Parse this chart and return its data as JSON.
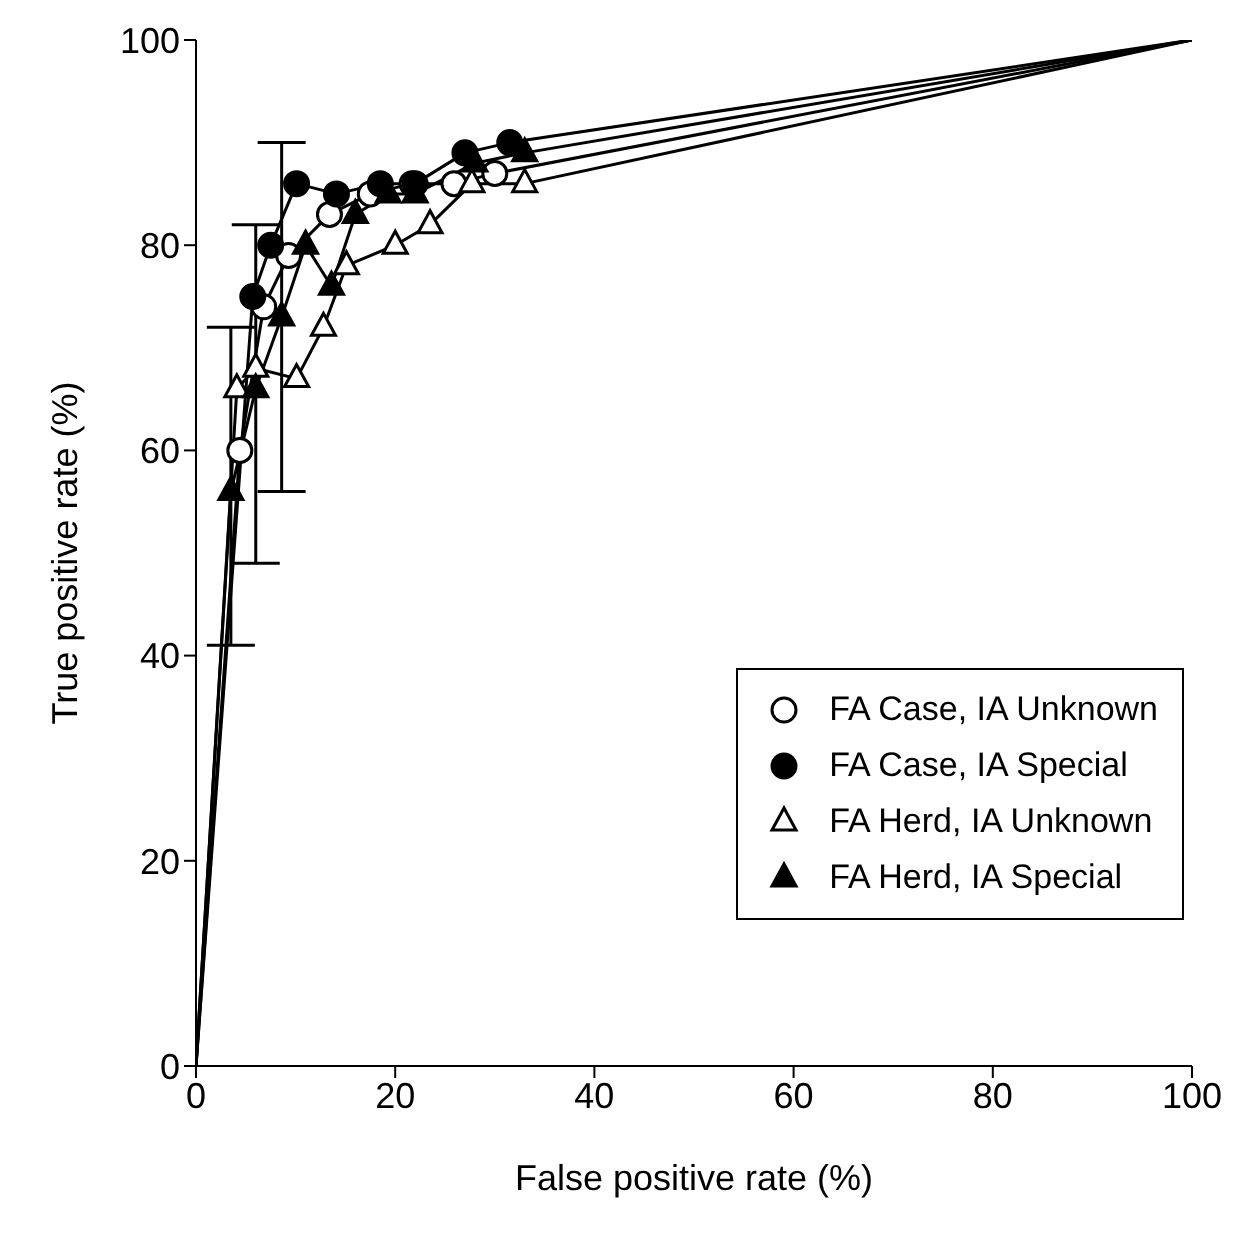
{
  "chart_data": {
    "type": "line",
    "xlabel": "False positive rate (%)",
    "ylabel": "True positive rate (%)",
    "xlim": [
      0,
      100
    ],
    "ylim": [
      0,
      100
    ],
    "xticks": [
      0,
      20,
      40,
      60,
      80,
      100
    ],
    "yticks": [
      0,
      20,
      40,
      60,
      80,
      100
    ],
    "grid": false,
    "legend": "bottom right",
    "line_style": "solid",
    "series": [
      {
        "name": "FA Case, IA Unknown",
        "color": "#ffffff",
        "marker": "circle",
        "x": [
          0,
          4.4,
          6.8,
          9.3,
          13.4,
          17.5,
          21.7,
          25.9,
          30,
          100
        ],
        "values": [
          0,
          60,
          74,
          79,
          83,
          85,
          86,
          86,
          87,
          100
        ]
      },
      {
        "name": "FA Case, IA Special",
        "color": "#000000",
        "marker": "circle",
        "x": [
          0,
          5.7,
          7.5,
          10.1,
          14.1,
          18.5,
          22,
          27,
          31.5,
          100
        ],
        "values": [
          0,
          75,
          80,
          86,
          85,
          86,
          86,
          89,
          90,
          100
        ]
      },
      {
        "name": "FA Herd, IA Unknown",
        "color": "#ffffff",
        "marker": "triangle",
        "x": [
          0,
          4.1,
          6,
          10.1,
          12.8,
          15.1,
          20,
          23.5,
          27.7,
          33,
          100
        ],
        "values": [
          0,
          66,
          68,
          67,
          72,
          78,
          80,
          82,
          86,
          86,
          100
        ]
      },
      {
        "name": "FA Herd, IA Special",
        "color": "#000000",
        "marker": "triangle",
        "x": [
          0,
          3.5,
          6,
          8.6,
          11,
          13.6,
          16,
          19.3,
          22,
          28,
          33,
          100
        ],
        "values": [
          0,
          56,
          66,
          73,
          80,
          76,
          83,
          85,
          85,
          88,
          89,
          100
        ],
        "errors": [
          null,
          [
            41,
            72
          ],
          [
            49,
            82
          ],
          [
            56,
            90
          ],
          null,
          null,
          null,
          null,
          null,
          null,
          null,
          null
        ]
      }
    ]
  }
}
